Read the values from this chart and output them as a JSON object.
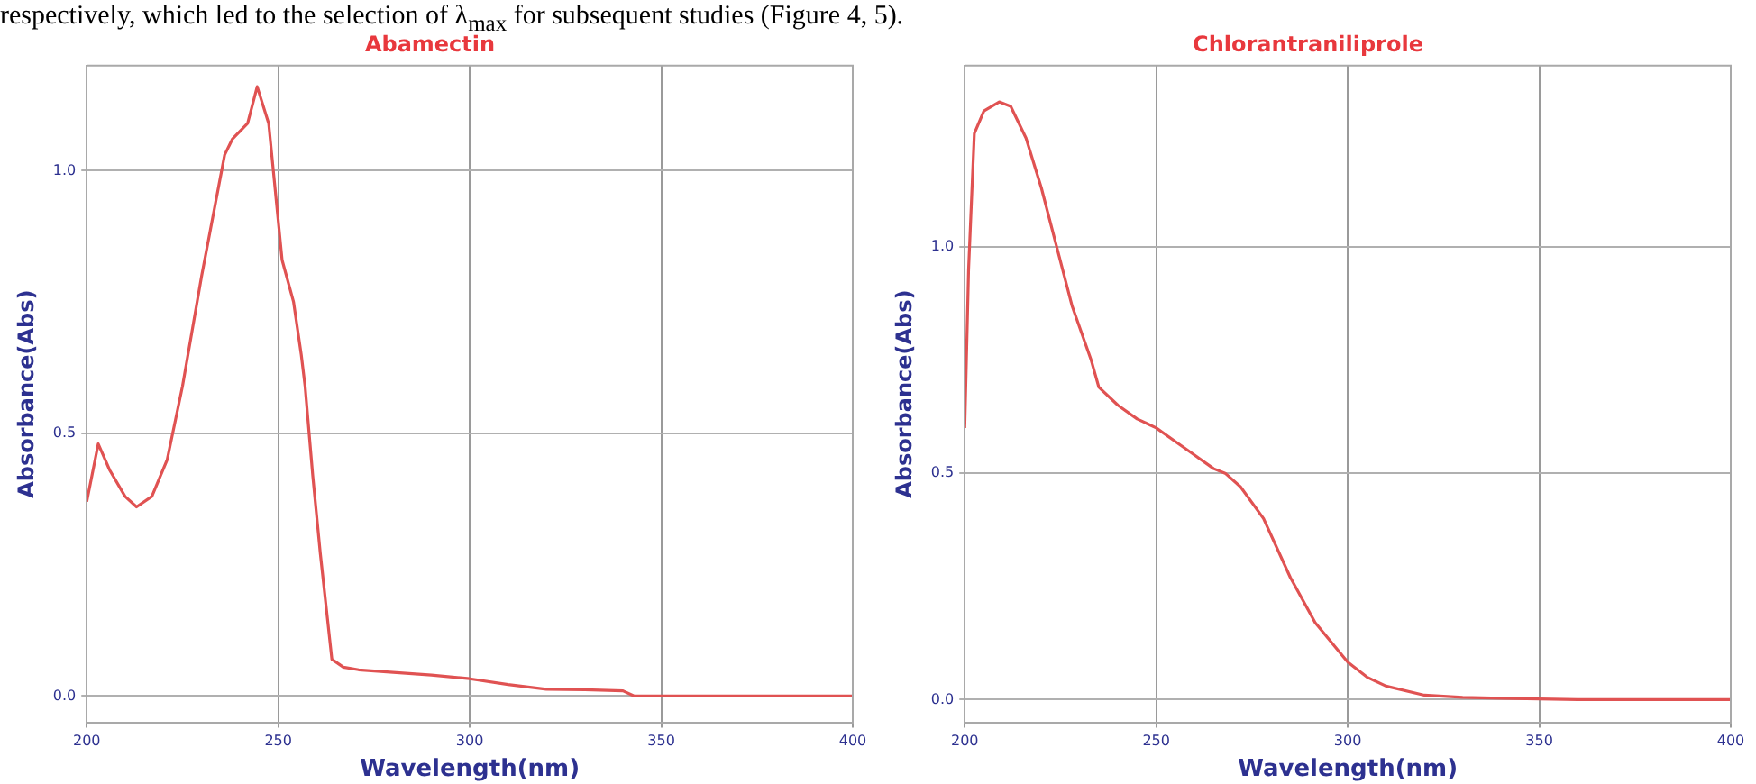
{
  "chart_data": [
    {
      "type": "line",
      "title": "Abamectin",
      "xlabel": "Wavelength(nm)",
      "ylabel": "Absorbance(Abs)",
      "annotations": [
        "respectively, which led to the selection of λ$_{max}$ for subsequent studies (Figure 4, 5)."
      ],
      "grid": true,
      "legend": false,
      "marker": "none",
      "line_style": "solid",
      "xlim": [
        200,
        400
      ],
      "ylim": [
        -0.05,
        1.2
      ],
      "xticks": [
        200,
        250,
        300,
        350,
        400
      ],
      "yticks": [
        {
          "value": 0,
          "label": "0.0"
        },
        {
          "value": 0.5,
          "label": "0.5"
        },
        {
          "value": 1,
          "label": "1.0"
        }
      ],
      "series": [
        {
          "color": "#e05252",
          "x": [
            200,
            203,
            206,
            210,
            213,
            217,
            221,
            225,
            230,
            236,
            238,
            242,
            244.5,
            247.5,
            251,
            254,
            256,
            257,
            259,
            261,
            264,
            267,
            271,
            280,
            290,
            300,
            310,
            320,
            330,
            340,
            343,
            360,
            380,
            400
          ],
          "values": [
            0.37,
            0.48,
            0.43,
            0.38,
            0.36,
            0.38,
            0.45,
            0.59,
            0.8,
            1.03,
            1.06,
            1.09,
            1.16,
            1.09,
            0.83,
            0.75,
            0.65,
            0.59,
            0.42,
            0.27,
            0.07,
            0.055,
            0.05,
            0.045,
            0.04,
            0.033,
            0.022,
            0.013,
            0.012,
            0.01,
            0,
            0,
            0,
            0
          ]
        }
      ]
    },
    {
      "type": "line",
      "title": "Chlorantraniliprole",
      "xlabel": "Wavelength(nm)",
      "ylabel": "Absorbance(Abs)",
      "grid": true,
      "legend": false,
      "marker": "none",
      "line_style": "solid",
      "xlim": [
        200,
        400
      ],
      "ylim": [
        -0.05,
        1.4
      ],
      "xticks": [
        200,
        250,
        300,
        350,
        400
      ],
      "yticks": [
        {
          "value": 0,
          "label": "0.0"
        },
        {
          "value": 0.5,
          "label": "0.5"
        },
        {
          "value": 1,
          "label": "1.0"
        }
      ],
      "series": [
        {
          "color": "#e05252",
          "x": [
            200,
            201,
            202.5,
            205,
            209,
            212,
            216,
            220,
            224,
            228,
            233,
            235,
            240,
            245,
            250,
            255,
            260,
            265,
            268,
            272,
            278,
            285,
            291.5,
            300,
            305,
            310,
            320,
            330,
            340,
            360,
            380,
            400
          ],
          "values": [
            0.6,
            0.95,
            1.25,
            1.3,
            1.32,
            1.31,
            1.24,
            1.13,
            1.0,
            0.87,
            0.75,
            0.69,
            0.65,
            0.62,
            0.6,
            0.57,
            0.54,
            0.51,
            0.5,
            0.47,
            0.4,
            0.27,
            0.17,
            0.083,
            0.05,
            0.03,
            0.01,
            0.005,
            0.003,
            0,
            0,
            0
          ]
        }
      ]
    }
  ]
}
